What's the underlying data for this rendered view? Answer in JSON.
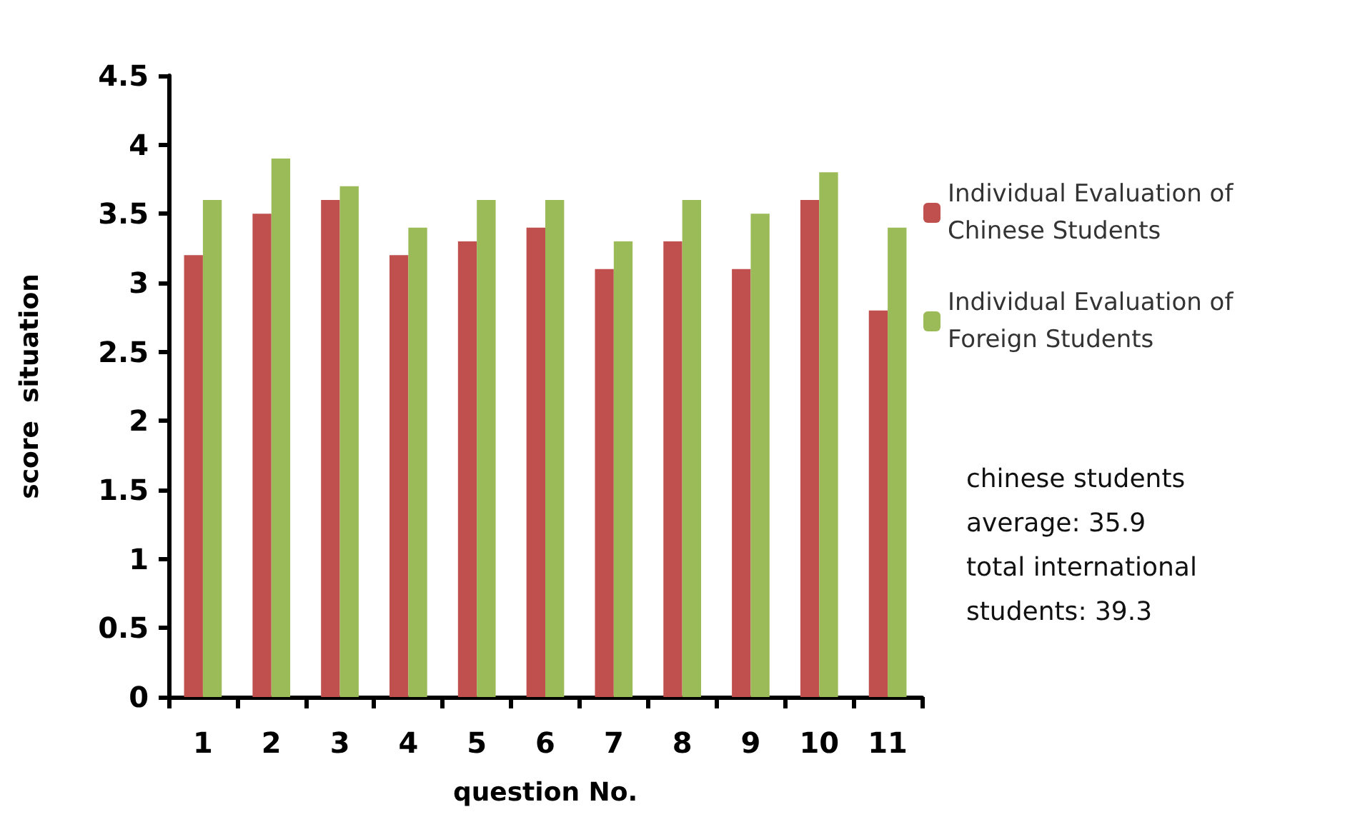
{
  "chart_data": {
    "type": "bar",
    "xlabel": "question No.",
    "ylabel": "score  situation",
    "categories": [
      "1",
      "2",
      "3",
      "4",
      "5",
      "6",
      "7",
      "8",
      "9",
      "10",
      "11"
    ],
    "series": [
      {
        "name": "Individual Evaluation of Chinese Students",
        "color": "#c0504d",
        "values": [
          3.2,
          3.5,
          3.6,
          3.2,
          3.3,
          3.4,
          3.1,
          3.3,
          3.1,
          3.6,
          2.8
        ]
      },
      {
        "name": "Individual Evaluation of Foreign Students",
        "color": "#9bbb59",
        "values": [
          3.6,
          3.9,
          3.7,
          3.4,
          3.6,
          3.6,
          3.3,
          3.6,
          3.5,
          3.8,
          3.4
        ]
      }
    ],
    "ylim": [
      0,
      4.5
    ],
    "yticks": [
      0,
      0.5,
      1,
      1.5,
      2,
      2.5,
      3,
      3.5,
      4,
      4.5
    ],
    "grid": false,
    "legend": "right",
    "annotations": [
      "chinese students average: 35.9",
      "total international students: 39.3"
    ]
  }
}
